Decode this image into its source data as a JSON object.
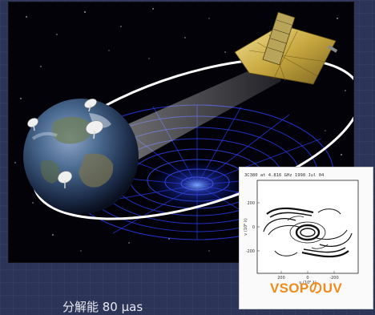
{
  "slide": {
    "bottom_text": "分解能  80 μas"
  },
  "uv_panel": {
    "title": "VSOPのUV",
    "header": "3C380 at 4.816 GHz 1998 Jul 04",
    "xlabel": "u (10⁶ λ)",
    "ylabel": "v (10⁶ λ)",
    "x_ticks": [
      "400",
      "200",
      "0",
      "-200",
      "-400"
    ],
    "y_ticks": [
      "400",
      "200",
      "0",
      "-200",
      "-400"
    ]
  }
}
